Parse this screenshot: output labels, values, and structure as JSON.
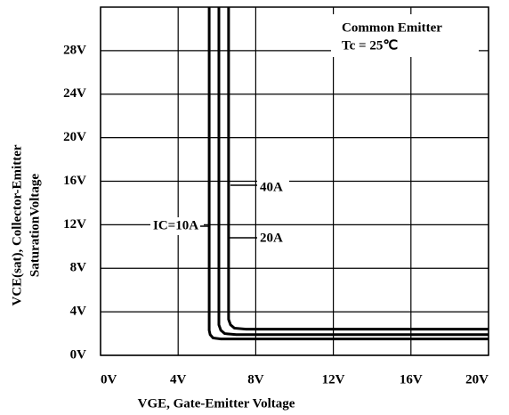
{
  "chart_data": {
    "type": "line",
    "xlabel": "VGE, Gate-Emitter Voltage",
    "ylabel": [
      "VCE(sat), Collector-Emitter",
      "SaturationVoltage"
    ],
    "annotation": [
      "Common Emitter",
      "Tc = 25℃"
    ],
    "xlim": [
      0,
      20
    ],
    "xticks": [
      {
        "value": 0,
        "label": "0V"
      },
      {
        "value": 4,
        "label": "4V"
      },
      {
        "value": 8,
        "label": "8V"
      },
      {
        "value": 12,
        "label": "12V"
      },
      {
        "value": 16,
        "label": "16V"
      },
      {
        "value": 20,
        "label": "20V"
      }
    ],
    "ylim": [
      0,
      32
    ],
    "yticks": [
      {
        "value": 0,
        "label": "0V"
      },
      {
        "value": 4,
        "label": "4V"
      },
      {
        "value": 8,
        "label": "8V"
      },
      {
        "value": 12,
        "label": "12V"
      },
      {
        "value": 16,
        "label": "16V"
      },
      {
        "value": 20,
        "label": "20V"
      },
      {
        "value": 24,
        "label": "24V"
      },
      {
        "value": 28,
        "label": "28V"
      }
    ],
    "grid": true,
    "series": [
      {
        "name": "IC=10A",
        "color": "#000000",
        "x": [
          5.6,
          5.6,
          5.65,
          5.8,
          6.2,
          8,
          20
        ],
        "values": [
          32,
          2.3,
          1.9,
          1.6,
          1.5,
          1.5,
          1.5
        ]
      },
      {
        "name": "20A",
        "color": "#000000",
        "x": [
          6.1,
          6.1,
          6.2,
          6.4,
          7,
          20
        ],
        "values": [
          32,
          2.8,
          2.3,
          2.0,
          1.9,
          1.9
        ]
      },
      {
        "name": "40A",
        "color": "#000000",
        "x": [
          6.6,
          6.6,
          6.7,
          6.9,
          7.5,
          20
        ],
        "values": [
          32,
          3.3,
          2.8,
          2.5,
          2.4,
          2.4
        ]
      }
    ]
  }
}
